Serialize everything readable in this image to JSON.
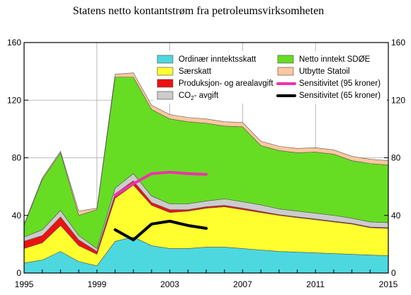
{
  "chart_data": {
    "type": "area",
    "title": "Statens netto kontantstrøm fra petroleumsvirksomheten",
    "x": [
      1995,
      1996,
      1997,
      1998,
      1999,
      2000,
      2001,
      2002,
      2003,
      2004,
      2005,
      2006,
      2007,
      2008,
      2009,
      2010,
      2011,
      2012,
      2013,
      2014,
      2015
    ],
    "xlim": [
      1995,
      2015
    ],
    "ylim": [
      0,
      160
    ],
    "x_ticks": [
      1995,
      1999,
      2003,
      2007,
      2011,
      2015
    ],
    "y_ticks": [
      0,
      40,
      80,
      120,
      160
    ],
    "grid": true,
    "legend_placement": "top-right",
    "series": [
      {
        "name": "Ordinær inntektsskatt",
        "color": "#4dd8e0",
        "values": [
          7,
          9,
          15,
          8,
          5,
          22,
          25,
          19,
          17,
          17,
          18,
          18,
          17,
          16,
          15,
          14.5,
          14,
          13.5,
          13,
          12.5,
          12
        ]
      },
      {
        "name": "Særskatt",
        "color": "#ffff30",
        "values": [
          10,
          12,
          18,
          11,
          8,
          30,
          36,
          28,
          25,
          26,
          27,
          28,
          27,
          26,
          25,
          24,
          23,
          22,
          21,
          19,
          19
        ]
      },
      {
        "name": "Produksjon- og arealavgift",
        "color": "#ee1111",
        "values": [
          5,
          5,
          6,
          4,
          2,
          3,
          3,
          2,
          2,
          1,
          1,
          1,
          1,
          0.8,
          0.5,
          0.5,
          0.5,
          0.5,
          0.5,
          0.5,
          0.5
        ]
      },
      {
        "name": "CO2-avgift",
        "color": "#cccccc",
        "values": [
          3,
          4,
          4.5,
          3,
          2,
          4,
          5,
          4.5,
          4,
          4,
          4,
          4.5,
          4.5,
          4.5,
          4,
          4,
          4,
          4,
          3.5,
          3.5,
          3.5
        ]
      },
      {
        "name": "Netto inntekt SDØE",
        "color": "#66dd22",
        "values": [
          8,
          35,
          40,
          14,
          27,
          77,
          67,
          60,
          59,
          57,
          54,
          50.5,
          52,
          41.2,
          40.5,
          40.5,
          42.5,
          42.5,
          40,
          40.5,
          40
        ]
      },
      {
        "name": "Utbytte Statoil",
        "color": "#ffc8a0",
        "values": [
          1,
          1,
          1,
          3,
          1,
          2,
          3,
          3,
          3,
          3,
          3,
          3,
          3,
          3,
          3,
          3,
          3,
          3,
          3,
          3,
          3
        ]
      }
    ],
    "lines": [
      {
        "name": "Sensitivitet (95 kroner)",
        "color": "#ee33aa",
        "x": [
          2000,
          2001,
          2002,
          2003,
          2004,
          2005
        ],
        "values": [
          54,
          62,
          69,
          70,
          69,
          68.5
        ]
      },
      {
        "name": "Sensitivitet (65 kroner)",
        "color": "#000000",
        "x": [
          2000,
          2001,
          2002,
          2003,
          2004,
          2005
        ],
        "values": [
          30,
          23,
          34,
          36,
          33,
          31
        ]
      }
    ],
    "legend_left": [
      {
        "label_main": "Ordinær inntektsskatt",
        "label_sub": "",
        "label_tail": "",
        "color": "#4dd8e0",
        "kind": "box"
      },
      {
        "label_main": "Særskatt",
        "label_sub": "",
        "label_tail": "",
        "color": "#ffff30",
        "kind": "box"
      },
      {
        "label_main": "Produksjon- og arealavgift",
        "label_sub": "",
        "label_tail": "",
        "color": "#ee1111",
        "kind": "box"
      },
      {
        "label_main": "CO",
        "label_sub": "2",
        "label_tail": "- avgift",
        "color": "#cccccc",
        "kind": "box"
      }
    ],
    "legend_right": [
      {
        "label_main": "Netto inntekt SDØE",
        "label_sub": "",
        "label_tail": "",
        "color": "#66dd22",
        "kind": "box"
      },
      {
        "label_main": "Utbytte Statoil",
        "label_sub": "",
        "label_tail": "",
        "color": "#ffc8a0",
        "kind": "box"
      },
      {
        "label_main": "Sensitivitet (95 kroner)",
        "label_sub": "",
        "label_tail": "",
        "color": "#ee33aa",
        "kind": "line"
      },
      {
        "label_main": "Sensitivitet (65 kroner)",
        "label_sub": "",
        "label_tail": "",
        "color": "#000000",
        "kind": "line"
      }
    ]
  }
}
